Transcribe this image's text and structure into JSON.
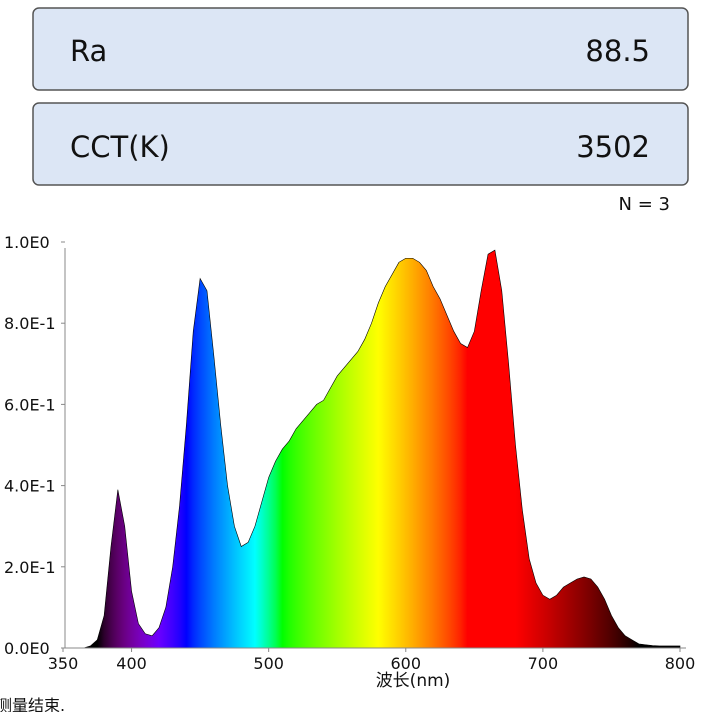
{
  "panels": [
    {
      "label": "Ra",
      "value": 88.5
    },
    {
      "label": "CCT(K)",
      "value": 3502
    }
  ],
  "count_label": "N = 3",
  "status": "测量结束.",
  "chart_data": {
    "type": "area",
    "x_label": "波长(nm)",
    "x": [
      360,
      365,
      370,
      375,
      380,
      385,
      390,
      395,
      400,
      405,
      410,
      415,
      420,
      425,
      430,
      435,
      440,
      445,
      450,
      455,
      460,
      465,
      470,
      475,
      480,
      485,
      490,
      495,
      500,
      505,
      510,
      515,
      520,
      525,
      530,
      535,
      540,
      545,
      550,
      555,
      560,
      565,
      570,
      575,
      580,
      585,
      590,
      595,
      600,
      605,
      610,
      615,
      620,
      625,
      630,
      635,
      640,
      645,
      650,
      655,
      660,
      665,
      670,
      675,
      680,
      685,
      690,
      695,
      700,
      705,
      710,
      715,
      720,
      725,
      730,
      735,
      740,
      745,
      750,
      755,
      760,
      765,
      770,
      775,
      780,
      785,
      790,
      795,
      800
    ],
    "values": [
      0,
      0,
      0.005,
      0.02,
      0.08,
      0.25,
      0.39,
      0.3,
      0.14,
      0.06,
      0.035,
      0.03,
      0.05,
      0.1,
      0.2,
      0.35,
      0.55,
      0.78,
      0.91,
      0.88,
      0.72,
      0.55,
      0.4,
      0.3,
      0.25,
      0.26,
      0.3,
      0.36,
      0.42,
      0.46,
      0.49,
      0.51,
      0.54,
      0.56,
      0.58,
      0.6,
      0.61,
      0.64,
      0.67,
      0.69,
      0.71,
      0.73,
      0.76,
      0.8,
      0.85,
      0.89,
      0.92,
      0.95,
      0.96,
      0.96,
      0.95,
      0.93,
      0.89,
      0.86,
      0.82,
      0.78,
      0.75,
      0.74,
      0.78,
      0.88,
      0.97,
      0.98,
      0.88,
      0.7,
      0.5,
      0.34,
      0.22,
      0.16,
      0.13,
      0.12,
      0.13,
      0.15,
      0.16,
      0.17,
      0.175,
      0.17,
      0.15,
      0.12,
      0.08,
      0.05,
      0.03,
      0.02,
      0.01,
      0.008,
      0.006,
      0.005,
      0.005,
      0.005,
      0.005
    ],
    "xlim": [
      350,
      800
    ],
    "xticks": [
      350,
      400,
      500,
      600,
      700,
      800
    ],
    "ylim": [
      0,
      1
    ],
    "yticks": [
      {
        "value": 0,
        "label": "0.0E0"
      },
      {
        "value": 0.2,
        "label": "2.0E-1"
      },
      {
        "value": 0.4,
        "label": "4.0E-1"
      },
      {
        "value": 0.6,
        "label": "6.0E-1"
      },
      {
        "value": 0.8,
        "label": "8.0E-1"
      },
      {
        "value": 1,
        "label": "1.0E0"
      }
    ],
    "fill": "spectral"
  }
}
